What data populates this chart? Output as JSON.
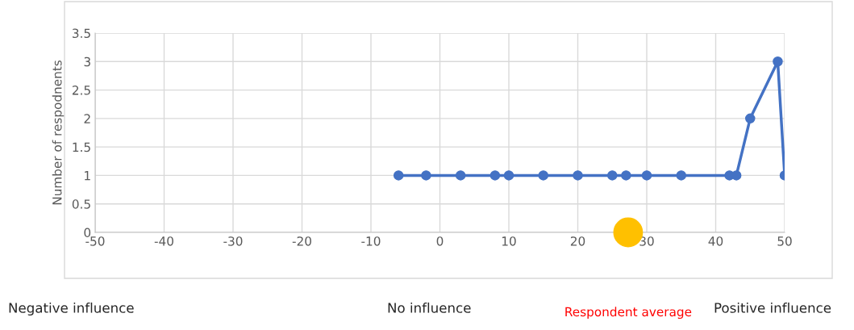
{
  "chart_data": {
    "type": "line",
    "ylabel": "Number of respodnents",
    "series": [
      {
        "color": "#4472c4",
        "x": [
          -6,
          -2,
          3,
          8,
          10,
          15,
          20,
          25,
          27,
          30,
          35,
          42,
          43,
          45,
          49,
          50
        ],
        "values": [
          1,
          1,
          1,
          1,
          1,
          1,
          1,
          1,
          1,
          1,
          1,
          1,
          1,
          2,
          3,
          1
        ]
      },
      {
        "type": "scatter",
        "name": "Respondent average",
        "color": "#ffc000",
        "x": [
          27.3
        ],
        "values": [
          0
        ]
      }
    ],
    "xlim": [
      -50,
      50
    ],
    "xticks": [
      -50,
      -40,
      -30,
      -20,
      -10,
      0,
      10,
      20,
      30,
      40,
      50
    ],
    "ylim": [
      0,
      3.5
    ],
    "yticks": [
      0,
      0.5,
      1,
      1.5,
      2,
      2.5,
      3,
      3.5
    ],
    "grid": true,
    "marker": "circle",
    "line_style": "solid",
    "annotations": [
      "Negative influence",
      "No influence",
      "Positive influence"
    ]
  }
}
